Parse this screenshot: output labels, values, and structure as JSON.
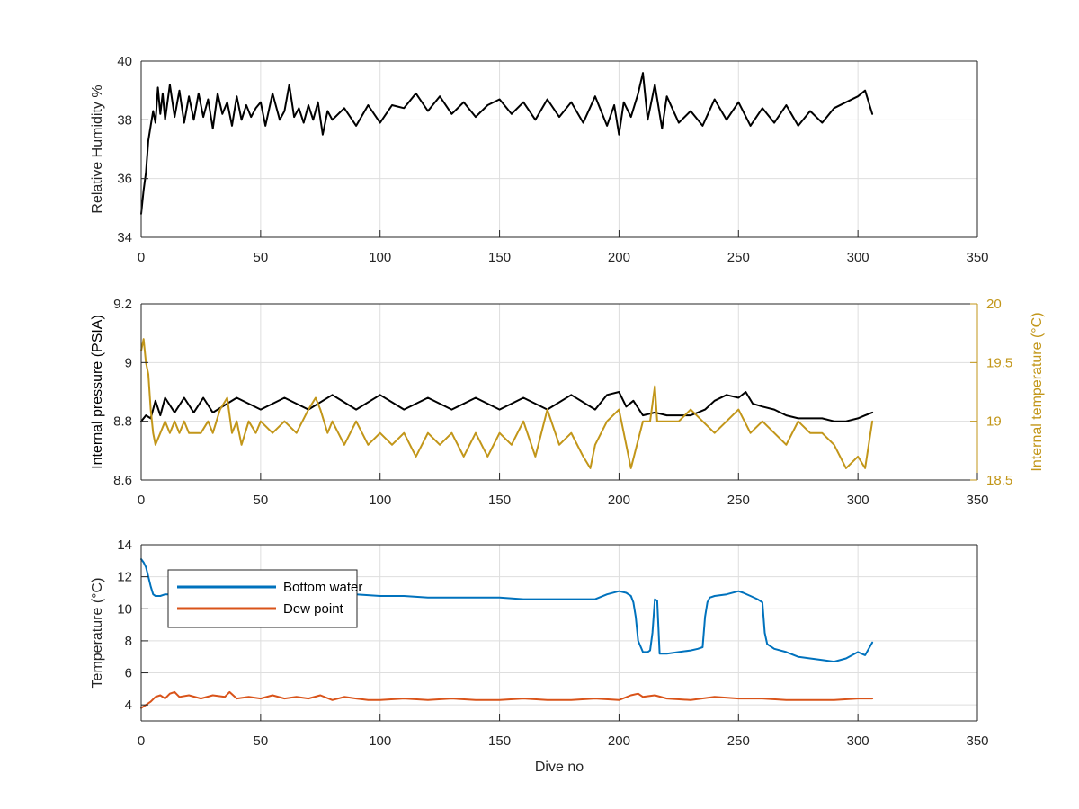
{
  "chart_data": [
    {
      "type": "line",
      "xlabel": "",
      "ylabel": "Relative Humidity %",
      "xlim": [
        0,
        350
      ],
      "ylim": [
        34,
        40
      ],
      "xticks": [
        0,
        50,
        100,
        150,
        200,
        250,
        300,
        350
      ],
      "yticks": [
        34,
        36,
        38,
        40
      ],
      "grid": true,
      "series": [
        {
          "color": "#000000",
          "x": [
            0,
            1,
            2,
            3,
            4,
            5,
            6,
            7,
            8,
            9,
            10,
            12,
            14,
            16,
            18,
            20,
            22,
            24,
            26,
            28,
            30,
            32,
            34,
            36,
            38,
            40,
            42,
            44,
            46,
            48,
            50,
            52,
            55,
            58,
            60,
            62,
            64,
            66,
            68,
            70,
            72,
            74,
            76,
            78,
            80,
            85,
            90,
            95,
            100,
            105,
            110,
            115,
            120,
            125,
            130,
            135,
            140,
            145,
            150,
            155,
            160,
            165,
            170,
            175,
            180,
            185,
            190,
            195,
            198,
            200,
            202,
            205,
            208,
            210,
            212,
            215,
            218,
            220,
            225,
            230,
            235,
            240,
            245,
            250,
            255,
            260,
            265,
            270,
            275,
            280,
            285,
            290,
            295,
            300,
            303,
            306
          ],
          "values": [
            34.8,
            35.6,
            36.2,
            37.3,
            37.8,
            38.3,
            37.9,
            39.1,
            38.2,
            38.9,
            38.0,
            39.2,
            38.1,
            39.0,
            37.9,
            38.8,
            38.0,
            38.9,
            38.1,
            38.7,
            37.7,
            38.9,
            38.2,
            38.6,
            37.8,
            38.8,
            38.0,
            38.5,
            38.1,
            38.4,
            38.6,
            37.8,
            38.9,
            38.0,
            38.3,
            39.2,
            38.1,
            38.4,
            37.9,
            38.5,
            38.0,
            38.6,
            37.5,
            38.3,
            38.0,
            38.4,
            37.8,
            38.5,
            37.9,
            38.5,
            38.4,
            38.9,
            38.3,
            38.8,
            38.2,
            38.6,
            38.1,
            38.5,
            38.7,
            38.2,
            38.6,
            38.0,
            38.7,
            38.1,
            38.6,
            37.9,
            38.8,
            37.8,
            38.5,
            37.5,
            38.6,
            38.1,
            38.9,
            39.6,
            38.0,
            39.2,
            37.7,
            38.8,
            37.9,
            38.3,
            37.8,
            38.7,
            38.0,
            38.6,
            37.8,
            38.4,
            37.9,
            38.5,
            37.8,
            38.3,
            37.9,
            38.4,
            38.6,
            38.8,
            39.0,
            38.2
          ]
        }
      ]
    },
    {
      "type": "line",
      "xlabel": "",
      "ylabel": "Internal pressure (PSIA)",
      "ylabel_right": "Internal temperature (°C)",
      "xlim": [
        0,
        350
      ],
      "ylim": [
        8.6,
        9.2
      ],
      "ylim_right": [
        18.5,
        20
      ],
      "xticks": [
        0,
        50,
        100,
        150,
        200,
        250,
        300,
        350
      ],
      "yticks": [
        8.6,
        8.8,
        9.0,
        9.2
      ],
      "yticks_labels": [
        "8.6",
        "8.8",
        "9",
        "9.2"
      ],
      "yticks_right": [
        18.5,
        19,
        19.5,
        20
      ],
      "yticks_right_labels": [
        "18.5",
        "19",
        "19.5",
        "20"
      ],
      "right_axis_color": "#c29619",
      "grid": true,
      "series": [
        {
          "axis": "left",
          "color": "#000000",
          "x": [
            0,
            2,
            4,
            6,
            8,
            10,
            14,
            18,
            22,
            26,
            30,
            40,
            50,
            60,
            70,
            80,
            90,
            100,
            110,
            120,
            130,
            140,
            150,
            160,
            170,
            180,
            190,
            195,
            200,
            203,
            206,
            210,
            215,
            220,
            225,
            230,
            233,
            236,
            240,
            245,
            250,
            253,
            256,
            260,
            265,
            270,
            275,
            280,
            285,
            290,
            295,
            300,
            303,
            306
          ],
          "values": [
            8.8,
            8.82,
            8.81,
            8.87,
            8.82,
            8.88,
            8.83,
            8.88,
            8.83,
            8.88,
            8.83,
            8.88,
            8.84,
            8.88,
            8.84,
            8.89,
            8.84,
            8.89,
            8.84,
            8.88,
            8.84,
            8.88,
            8.84,
            8.88,
            8.84,
            8.89,
            8.84,
            8.89,
            8.9,
            8.85,
            8.87,
            8.82,
            8.83,
            8.82,
            8.82,
            8.82,
            8.83,
            8.84,
            8.87,
            8.89,
            8.88,
            8.9,
            8.86,
            8.85,
            8.84,
            8.82,
            8.81,
            8.81,
            8.81,
            8.8,
            8.8,
            8.81,
            8.82,
            8.83
          ]
        },
        {
          "axis": "right",
          "color": "#c29619",
          "x": [
            0,
            1,
            2,
            3,
            4,
            5,
            6,
            8,
            10,
            12,
            14,
            16,
            18,
            20,
            22,
            25,
            28,
            30,
            33,
            36,
            38,
            40,
            42,
            45,
            48,
            50,
            55,
            60,
            65,
            70,
            73,
            75,
            78,
            80,
            85,
            90,
            95,
            100,
            105,
            110,
            115,
            120,
            125,
            130,
            135,
            140,
            145,
            150,
            155,
            160,
            165,
            170,
            175,
            180,
            185,
            188,
            190,
            195,
            200,
            203,
            205,
            210,
            213,
            215,
            216,
            218,
            220,
            225,
            230,
            235,
            240,
            245,
            250,
            255,
            260,
            265,
            270,
            275,
            280,
            285,
            290,
            295,
            300,
            303,
            306
          ],
          "values": [
            19.6,
            19.7,
            19.5,
            19.4,
            19.1,
            18.9,
            18.8,
            18.9,
            19.0,
            18.9,
            19.0,
            18.9,
            19.0,
            18.9,
            18.9,
            18.9,
            19.0,
            18.9,
            19.1,
            19.2,
            18.9,
            19.0,
            18.8,
            19.0,
            18.9,
            19.0,
            18.9,
            19.0,
            18.9,
            19.1,
            19.2,
            19.1,
            18.9,
            19.0,
            18.8,
            19.0,
            18.8,
            18.9,
            18.8,
            18.9,
            18.7,
            18.9,
            18.8,
            18.9,
            18.7,
            18.9,
            18.7,
            18.9,
            18.8,
            19.0,
            18.7,
            19.1,
            18.8,
            18.9,
            18.7,
            18.6,
            18.8,
            19.0,
            19.1,
            18.8,
            18.6,
            19.0,
            19.0,
            19.3,
            19.0,
            19.0,
            19.0,
            19.0,
            19.1,
            19.0,
            18.9,
            19.0,
            19.1,
            18.9,
            19.0,
            18.9,
            18.8,
            19.0,
            18.9,
            18.9,
            18.8,
            18.6,
            18.7,
            18.6,
            19.0
          ]
        }
      ]
    },
    {
      "type": "line",
      "xlabel": "Dive no",
      "ylabel": "Temperature (°C)",
      "xlim": [
        0,
        350
      ],
      "ylim": [
        3,
        14
      ],
      "xticks": [
        0,
        50,
        100,
        150,
        200,
        250,
        300,
        350
      ],
      "yticks": [
        4,
        6,
        8,
        10,
        12,
        14
      ],
      "grid": true,
      "legend_placement": "top-left",
      "series": [
        {
          "name": "Bottom water",
          "color": "#0072bd",
          "x": [
            0,
            1,
            2,
            3,
            4,
            5,
            6,
            8,
            10,
            12,
            14,
            16,
            20,
            30,
            40,
            50,
            60,
            70,
            80,
            90,
            100,
            110,
            120,
            130,
            140,
            150,
            160,
            170,
            180,
            190,
            195,
            200,
            203,
            205,
            206,
            207,
            208,
            210,
            212,
            213,
            214,
            215,
            216,
            217,
            218,
            220,
            225,
            230,
            233,
            235,
            236,
            237,
            238,
            240,
            245,
            250,
            252,
            255,
            258,
            260,
            261,
            262,
            265,
            270,
            275,
            280,
            285,
            290,
            295,
            300,
            303,
            306
          ],
          "values": [
            13.1,
            12.9,
            12.6,
            12.0,
            11.4,
            10.9,
            10.8,
            10.8,
            10.9,
            10.9,
            10.9,
            11.0,
            11.0,
            11.0,
            11.0,
            11.0,
            11.0,
            11.0,
            10.9,
            10.9,
            10.8,
            10.8,
            10.7,
            10.7,
            10.7,
            10.7,
            10.6,
            10.6,
            10.6,
            10.6,
            10.9,
            11.1,
            11.0,
            10.8,
            10.4,
            9.5,
            8.0,
            7.3,
            7.3,
            7.4,
            8.5,
            10.6,
            10.5,
            7.2,
            7.2,
            7.2,
            7.3,
            7.4,
            7.5,
            7.6,
            9.5,
            10.4,
            10.7,
            10.8,
            10.9,
            11.1,
            11.0,
            10.8,
            10.6,
            10.4,
            8.5,
            7.8,
            7.5,
            7.3,
            7.0,
            6.9,
            6.8,
            6.7,
            6.9,
            7.3,
            7.1,
            7.9
          ]
        },
        {
          "name": "Dew point",
          "color": "#d95319",
          "x": [
            0,
            2,
            4,
            6,
            8,
            10,
            12,
            14,
            16,
            20,
            25,
            30,
            35,
            37,
            40,
            45,
            50,
            55,
            60,
            65,
            70,
            75,
            80,
            85,
            90,
            95,
            100,
            110,
            120,
            130,
            140,
            150,
            160,
            170,
            180,
            190,
            200,
            205,
            208,
            210,
            215,
            220,
            230,
            240,
            250,
            260,
            270,
            280,
            290,
            300,
            306
          ],
          "values": [
            3.8,
            4.0,
            4.2,
            4.5,
            4.6,
            4.4,
            4.7,
            4.8,
            4.5,
            4.6,
            4.4,
            4.6,
            4.5,
            4.8,
            4.4,
            4.5,
            4.4,
            4.6,
            4.4,
            4.5,
            4.4,
            4.6,
            4.3,
            4.5,
            4.4,
            4.3,
            4.3,
            4.4,
            4.3,
            4.4,
            4.3,
            4.3,
            4.4,
            4.3,
            4.3,
            4.4,
            4.3,
            4.6,
            4.7,
            4.5,
            4.6,
            4.4,
            4.3,
            4.5,
            4.4,
            4.4,
            4.3,
            4.3,
            4.3,
            4.4,
            4.4
          ]
        }
      ]
    }
  ]
}
